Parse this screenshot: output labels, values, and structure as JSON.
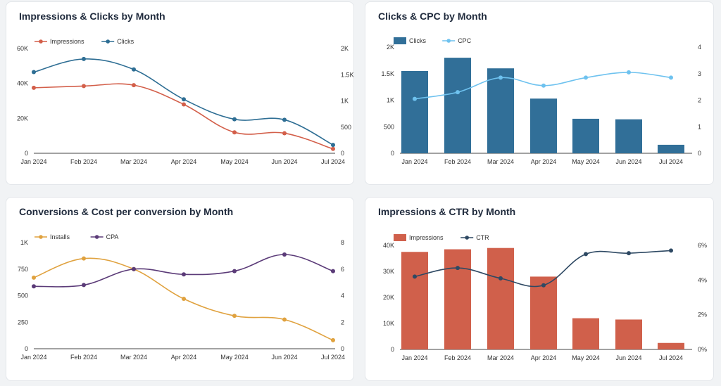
{
  "colors": {
    "impressions_line": "#d35f4a",
    "clicks_line": "#2e6e94",
    "clicks_bar": "#316f98",
    "cpc_line": "#6ec2ef",
    "installs_line": "#e0a23f",
    "cpa_line": "#5b3b78",
    "impressions_bar": "#d0604b",
    "ctr_line": "#2e4963"
  },
  "chart_data": [
    {
      "type": "line",
      "title": "Impressions & Clicks by Month",
      "categories": [
        "Jan 2024",
        "Feb 2024",
        "Mar 2024",
        "Apr 2024",
        "May 2024",
        "Jun 2024",
        "Jul 2024"
      ],
      "series": [
        {
          "name": "Impressions",
          "axis": "left",
          "type": "line",
          "color_key": "impressions_line",
          "values": [
            37500,
            38500,
            39000,
            28000,
            12000,
            11500,
            2500
          ]
        },
        {
          "name": "Clicks",
          "axis": "right",
          "type": "line",
          "color_key": "clicks_line",
          "values": [
            1550,
            1800,
            1600,
            1030,
            650,
            640,
            160
          ]
        }
      ],
      "left_axis": {
        "min": 0,
        "max": 60000,
        "ticks": [
          0,
          20000,
          40000,
          60000
        ],
        "tick_labels": [
          "0",
          "20K",
          "40K",
          "60K"
        ]
      },
      "right_axis": {
        "min": 0,
        "max": 2000,
        "ticks": [
          0,
          500,
          1000,
          1500,
          2000
        ],
        "tick_labels": [
          "0",
          "500",
          "1K",
          "1.5K",
          "2K"
        ]
      },
      "legend": "top-left"
    },
    {
      "type": "bar",
      "title": "Clicks & CPC by Month",
      "categories": [
        "Jan 2024",
        "Feb 2024",
        "Mar 2024",
        "Apr 2024",
        "May 2024",
        "Jun 2024",
        "Jul 2024"
      ],
      "series": [
        {
          "name": "Clicks",
          "axis": "left",
          "type": "bar",
          "color_key": "clicks_bar",
          "values": [
            1550,
            1800,
            1600,
            1030,
            650,
            640,
            160
          ]
        },
        {
          "name": "CPC",
          "axis": "right",
          "type": "line",
          "color_key": "cpc_line",
          "values": [
            2.05,
            2.3,
            2.85,
            2.55,
            2.85,
            3.05,
            2.85
          ]
        }
      ],
      "left_axis": {
        "min": 0,
        "max": 2000,
        "ticks": [
          0,
          500,
          1000,
          1500,
          2000
        ],
        "tick_labels": [
          "0",
          "500",
          "1K",
          "1.5K",
          "2K"
        ]
      },
      "right_axis": {
        "min": 0,
        "max": 4,
        "ticks": [
          0,
          1,
          2,
          3,
          4
        ],
        "tick_labels": [
          "0",
          "1",
          "2",
          "3",
          "4"
        ]
      },
      "legend": "top-left"
    },
    {
      "type": "line",
      "title": "Conversions & Cost per conversion by Month",
      "categories": [
        "Jan 2024",
        "Feb 2024",
        "Mar 2024",
        "Apr 2024",
        "May 2024",
        "Jun 2024",
        "Jul 2024"
      ],
      "series": [
        {
          "name": "Installs",
          "axis": "left",
          "type": "line",
          "color_key": "installs_line",
          "values": [
            670,
            850,
            750,
            470,
            310,
            275,
            80
          ]
        },
        {
          "name": "CPA",
          "axis": "right",
          "type": "line",
          "color_key": "cpa_line",
          "values": [
            4.7,
            4.8,
            6.0,
            5.6,
            5.85,
            7.1,
            5.85
          ]
        }
      ],
      "left_axis": {
        "min": 0,
        "max": 1000,
        "ticks": [
          0,
          250,
          500,
          750,
          1000
        ],
        "tick_labels": [
          "0",
          "250",
          "500",
          "750",
          "1K"
        ]
      },
      "right_axis": {
        "min": 0,
        "max": 8,
        "ticks": [
          0,
          2,
          4,
          6,
          8
        ],
        "tick_labels": [
          "0",
          "2",
          "4",
          "6",
          "8"
        ]
      },
      "legend": "top-left"
    },
    {
      "type": "bar",
      "title": "Impressions & CTR by Month",
      "categories": [
        "Jan 2024",
        "Feb 2024",
        "Mar 2024",
        "Apr 2024",
        "May 2024",
        "Jun 2024",
        "Jul 2024"
      ],
      "series": [
        {
          "name": "Impressions",
          "axis": "left",
          "type": "bar",
          "color_key": "impressions_bar",
          "values": [
            37500,
            38500,
            39000,
            28000,
            12000,
            11500,
            2500
          ]
        },
        {
          "name": "CTR",
          "axis": "right",
          "type": "line",
          "color_key": "ctr_line",
          "values": [
            4.2,
            4.7,
            4.1,
            3.7,
            5.5,
            5.55,
            5.7
          ]
        }
      ],
      "left_axis": {
        "min": 0,
        "max": 40000,
        "ticks": [
          0,
          10000,
          20000,
          30000,
          40000
        ],
        "tick_labels": [
          "0",
          "10K",
          "20K",
          "30K",
          "40K"
        ]
      },
      "right_axis": {
        "min": 0,
        "max": 6,
        "ticks": [
          0,
          2,
          4,
          6
        ],
        "tick_labels": [
          "0%",
          "2%",
          "4%",
          "6%"
        ]
      },
      "legend": "top-left"
    }
  ]
}
